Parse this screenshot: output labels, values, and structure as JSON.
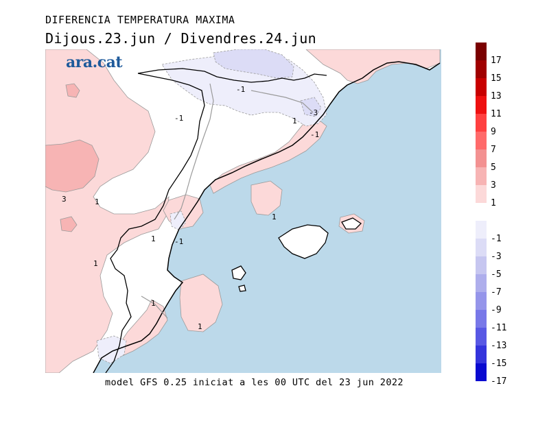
{
  "header": {
    "title": "DIFERENCIA TEMPERATURA MAXIMA",
    "subtitle": "Dijous.23.jun / Divendres.24.jun"
  },
  "logo": {
    "text": "ara.cat",
    "color": "#1e5a9b"
  },
  "footer": {
    "text": "model GFS 0.25 iniciat a les 00 UTC del 23 jun 2022"
  },
  "map": {
    "sea_color": "#bcd9ea",
    "land_color": "#ffffff",
    "contour_labels": [
      "-1",
      "-1",
      "-3",
      "1",
      "-1",
      "3",
      "1",
      "1",
      "-1",
      "1",
      "1",
      "1",
      "1"
    ]
  },
  "legend": {
    "warm": [
      {
        "label": "17",
        "color": "#7a0000"
      },
      {
        "label": "15",
        "color": "#a00000"
      },
      {
        "label": "13",
        "color": "#c80000"
      },
      {
        "label": "11",
        "color": "#ee1010"
      },
      {
        "label": "9",
        "color": "#ff4040"
      },
      {
        "label": "7",
        "color": "#ff6a6a"
      },
      {
        "label": "5",
        "color": "#f39191"
      },
      {
        "label": "3",
        "color": "#f7b4b4"
      },
      {
        "label": "1",
        "color": "#fcd9d9"
      }
    ],
    "cold": [
      {
        "label": "-1",
        "color": "#eeeefb"
      },
      {
        "label": "-3",
        "color": "#dcdcf6"
      },
      {
        "label": "-5",
        "color": "#c6c6f0"
      },
      {
        "label": "-7",
        "color": "#aeaeec"
      },
      {
        "label": "-9",
        "color": "#9595ea"
      },
      {
        "label": "-11",
        "color": "#7878e8"
      },
      {
        "label": "-13",
        "color": "#5858e4"
      },
      {
        "label": "-15",
        "color": "#3434dc"
      },
      {
        "label": "-17",
        "color": "#0a0ad0"
      }
    ]
  }
}
